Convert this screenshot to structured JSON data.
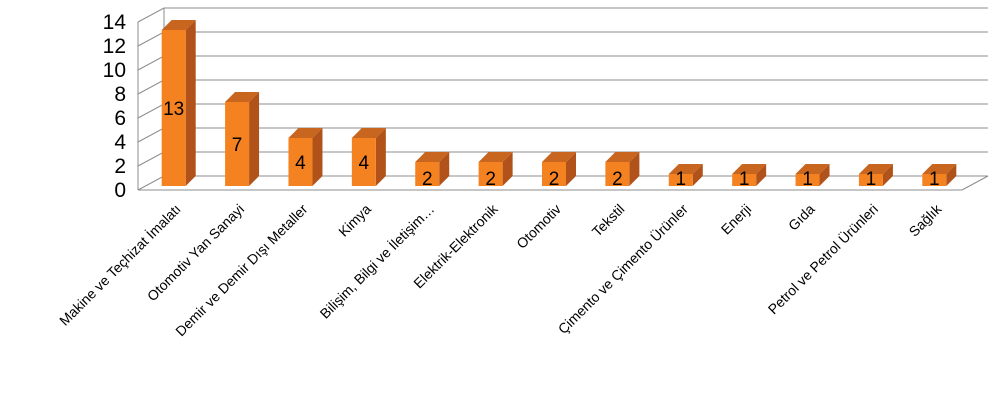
{
  "chart_data": {
    "type": "bar",
    "style": "3d-column",
    "categories": [
      "Makine ve Teçhizat İmalatı",
      "Otomotiv Yan Sanayi",
      "Demir ve Demir Dışı Metaller",
      "Kimya",
      "Bilişim, Bilgi ve İletişim…",
      "Elektrik-Elektronik",
      "Otomotiv",
      "Tekstil",
      "Çimento ve Çimento Ürünler",
      "Enerji",
      "Gıda",
      "Petrol ve Petrol Ürünleri",
      "Sağlık"
    ],
    "values": [
      13,
      7,
      4,
      4,
      2,
      2,
      2,
      2,
      1,
      1,
      1,
      1,
      1
    ],
    "data_labels": [
      "13",
      "7",
      "4",
      "4",
      "2",
      "2",
      "2",
      "2",
      "1",
      "1",
      "1",
      "1",
      "1"
    ],
    "yticks": [
      "0",
      "2",
      "4",
      "6",
      "8",
      "10",
      "12",
      "14"
    ],
    "ylim": [
      0,
      14
    ],
    "grid": true,
    "legend": "none",
    "colors": {
      "bar_front": "#f58220",
      "bar_side": "#b0521a",
      "bar_top": "#c8651f",
      "grid": "#8c8c8c"
    }
  }
}
